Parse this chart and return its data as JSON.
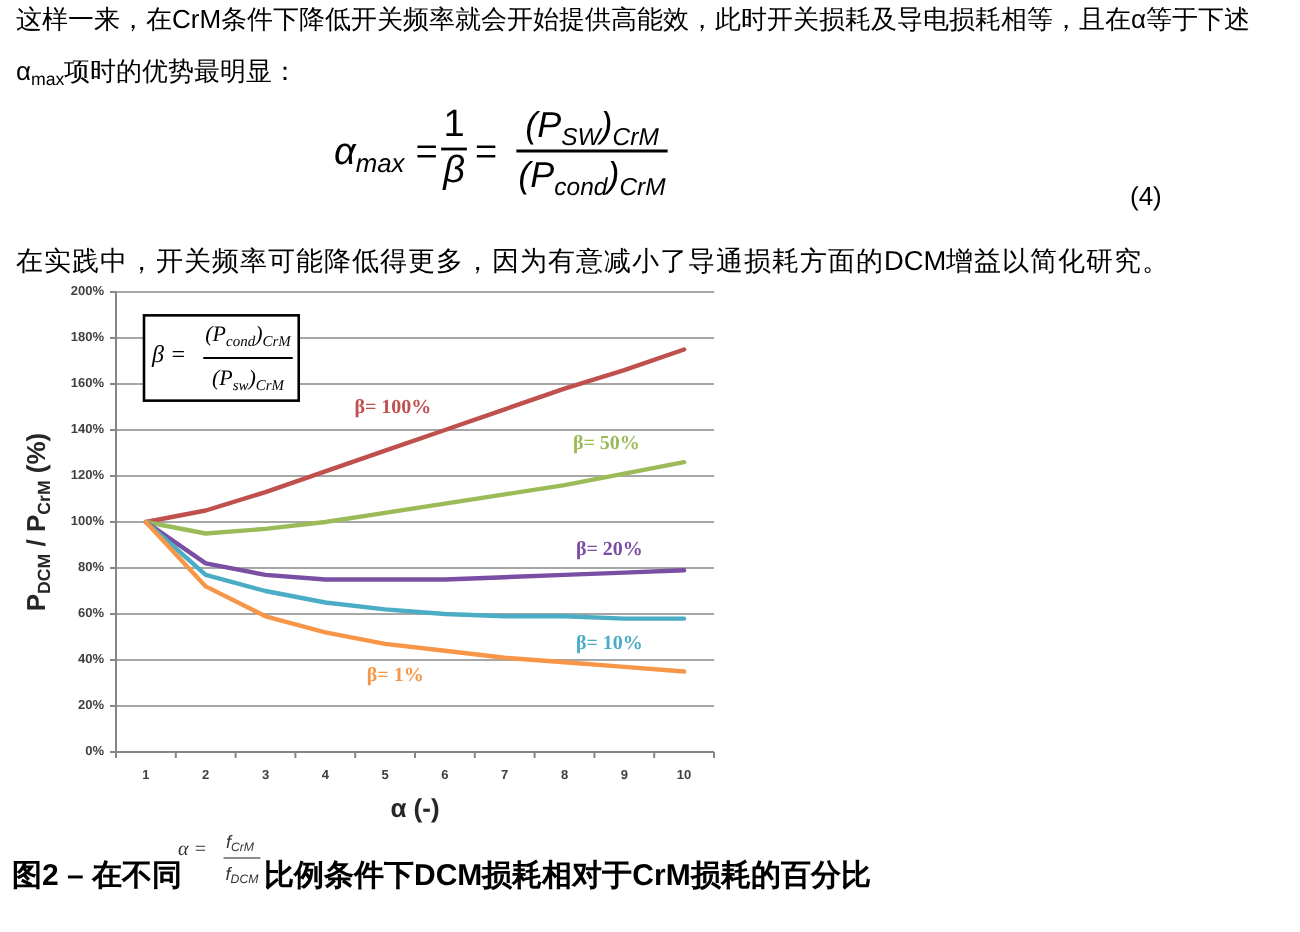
{
  "chart_data": {
    "type": "line",
    "annotations": [
      "这样一来，在CrM条件下降低开关频率就会开始提供高能效，此时开关损耗及导电损耗相等，且在α等于下述α$_{max}$项时的优势最明显：",
      "α$_{max}$ =",
      "1",
      "β",
      "=",
      "(P$_{SW}$)$_{CrM}$",
      "(P$_{cond}$)$_{CrM}$",
      "(4)",
      "在实践中，开关频率可能降低得更多，因为有意减小了导通损耗方面的DCM增益以简化研究。",
      "β =",
      "(P$_{cond}$)$_{CrM}$",
      "(P$_{sw}$)$_{CrM}$",
      "图2 – 在不同",
      "α =",
      "f$_{CrM}$",
      "f$_{DCM}$",
      "比例条件下DCM损耗相对于CrM损耗的百分比"
    ],
    "categories": [
      "1",
      "2",
      "3",
      "4",
      "5",
      "6",
      "7",
      "8",
      "9",
      "10"
    ],
    "series": [
      {
        "name": "β= 100%",
        "color": "#c0504d",
        "values": [
          100,
          105,
          113,
          122,
          131,
          140,
          149,
          158,
          166,
          175
        ]
      },
      {
        "name": "β= 50%",
        "color": "#9bbb59",
        "values": [
          100,
          95,
          97,
          100,
          104,
          108,
          112,
          116,
          121,
          126
        ]
      },
      {
        "name": "β= 20%",
        "color": "#7a4ea3",
        "values": [
          100,
          82,
          77,
          75,
          75,
          75,
          76,
          77,
          78,
          79
        ]
      },
      {
        "name": "β= 10%",
        "color": "#4bacc6",
        "values": [
          100,
          77,
          70,
          65,
          62,
          60,
          59,
          59,
          58,
          58
        ]
      },
      {
        "name": "β= 1%",
        "color": "#f79646",
        "values": [
          100,
          72,
          59,
          52,
          47,
          44,
          41,
          39,
          37,
          35
        ]
      }
    ],
    "ylim": [
      0,
      200
    ],
    "yticks": [
      {
        "value": 0,
        "label": "0%"
      },
      {
        "value": 20,
        "label": "20%"
      },
      {
        "value": 40,
        "label": "40%"
      },
      {
        "value": 60,
        "label": "60%"
      },
      {
        "value": 80,
        "label": "80%"
      },
      {
        "value": 100,
        "label": "100%"
      },
      {
        "value": 120,
        "label": "120%"
      },
      {
        "value": 140,
        "label": "140%"
      },
      {
        "value": 160,
        "label": "160%"
      },
      {
        "value": 180,
        "label": "180%"
      },
      {
        "value": 200,
        "label": "200%"
      }
    ],
    "grid": "y",
    "xlabel": "α (-)",
    "ylabel": "P$_{DCM}$ / P$_{CrM}$ (%)"
  }
}
